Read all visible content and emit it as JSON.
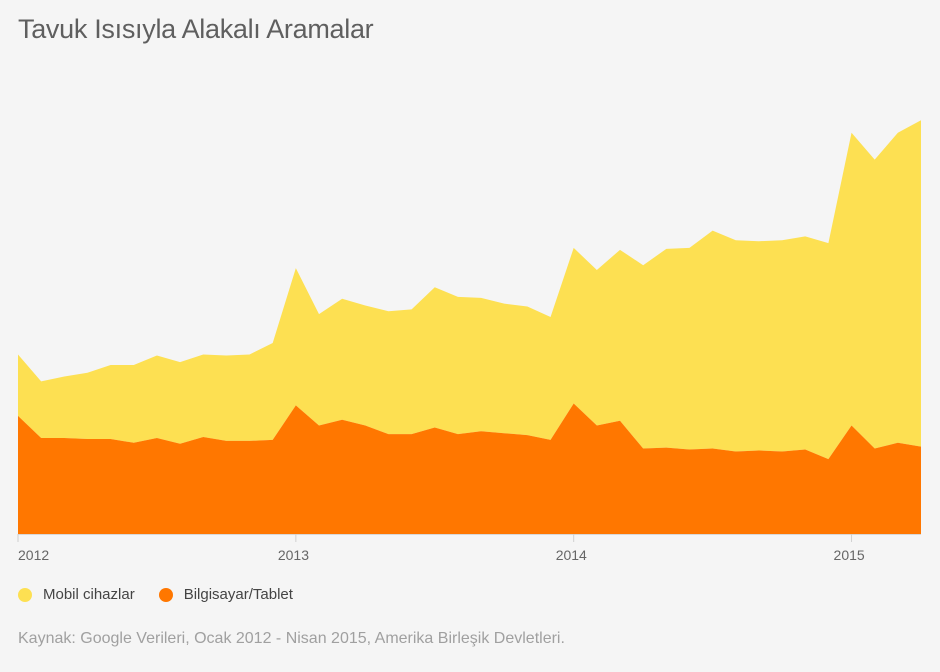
{
  "chart_data": {
    "type": "area",
    "stacked": true,
    "title": "Tavuk Isısıyla Alakalı Aramalar",
    "source_note": "Kaynak: Google Verileri, Ocak 2012 - Nisan 2015, Amerika Birleşik Devletleri.",
    "x_tick_labels": [
      "2012",
      "2013",
      "2014",
      "2015"
    ],
    "y_axis_labels_shown": false,
    "grid": false,
    "legend_position": "bottom-left",
    "x": [
      "2012-01",
      "2012-02",
      "2012-03",
      "2012-04",
      "2012-05",
      "2012-06",
      "2012-07",
      "2012-08",
      "2012-09",
      "2012-10",
      "2012-11",
      "2012-12",
      "2013-01",
      "2013-02",
      "2013-03",
      "2013-04",
      "2013-05",
      "2013-06",
      "2013-07",
      "2013-08",
      "2013-09",
      "2013-10",
      "2013-11",
      "2013-12",
      "2014-01",
      "2014-02",
      "2014-03",
      "2014-04",
      "2014-05",
      "2014-06",
      "2014-07",
      "2014-08",
      "2014-09",
      "2014-10",
      "2014-11",
      "2014-12",
      "2015-01",
      "2015-02",
      "2015-03",
      "2015-04"
    ],
    "series": [
      {
        "name": "Bilgisayar/Tablet",
        "color": "#ff7700",
        "values": [
          123,
          100,
          100,
          99,
          99,
          95,
          100,
          94,
          101,
          97,
          97,
          98,
          134,
          113,
          119,
          113,
          104,
          104,
          111,
          104,
          107,
          105,
          103,
          98,
          136,
          113,
          118,
          89,
          90,
          88,
          89,
          86,
          87,
          86,
          88,
          78,
          113,
          89,
          95,
          91
        ]
      },
      {
        "name": "Mobil cihazlar",
        "color": "#fde052",
        "values": [
          64,
          59,
          64,
          69,
          77,
          81,
          86,
          85,
          86,
          89,
          90,
          101,
          143,
          116,
          126,
          125,
          128,
          130,
          146,
          143,
          139,
          135,
          134,
          128,
          162,
          162,
          178,
          191,
          207,
          210,
          227,
          220,
          218,
          220,
          222,
          225,
          305,
          301,
          323,
          340
        ]
      }
    ]
  }
}
